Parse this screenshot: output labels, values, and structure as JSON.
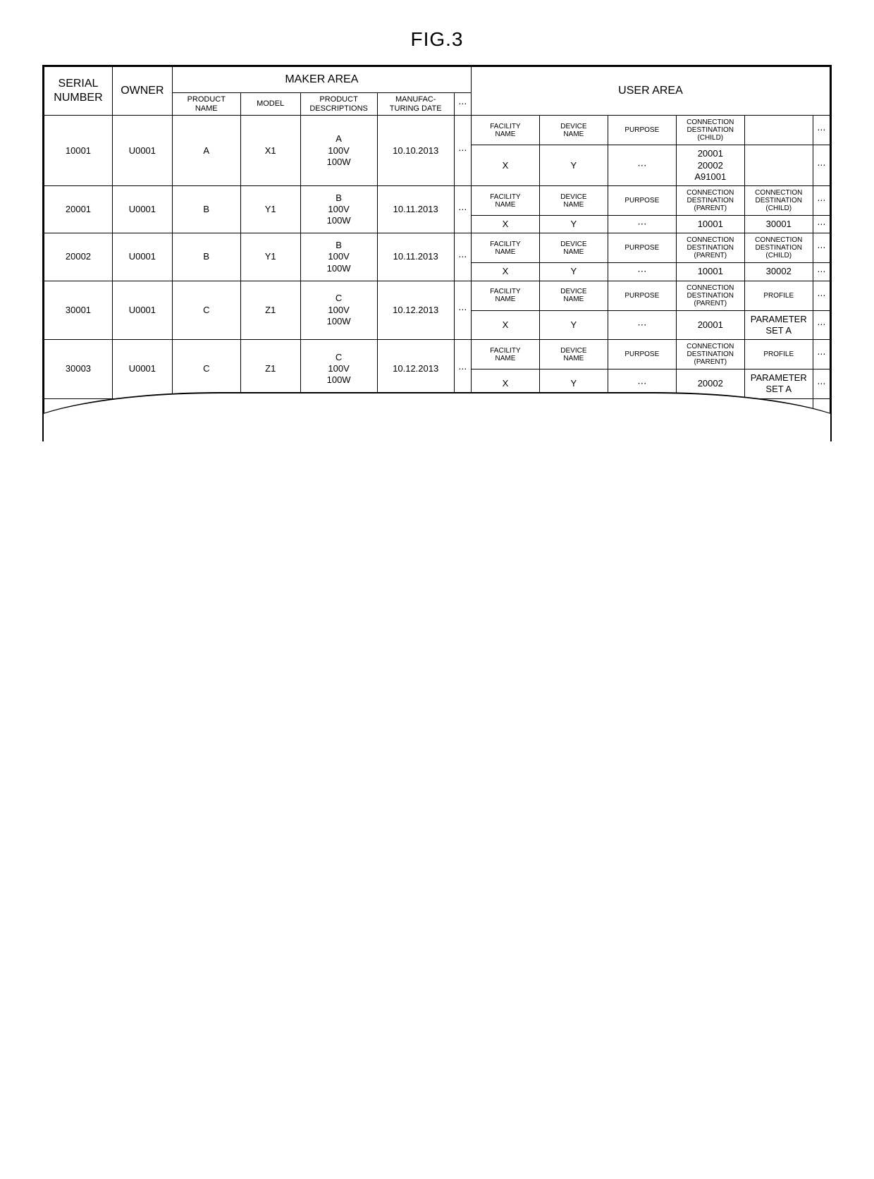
{
  "figure_title": "FIG.3",
  "area_headers": {
    "serial": "SERIAL\nNUMBER",
    "owner": "OWNER",
    "maker": "MAKER AREA",
    "user": "USER AREA"
  },
  "maker_cols": {
    "product_name": "PRODUCT\nNAME",
    "model": "MODEL",
    "product_desc": "PRODUCT\nDESCRIPTIONS",
    "manuf_date": "MANUFAC-\nTURING DATE",
    "more": "⋯"
  },
  "user_sub_labels": {
    "facility": "FACILITY\nNAME",
    "device": "DEVICE\nNAME",
    "purpose": "PURPOSE",
    "conn_child": "CONNECTION\nDESTINATION\n(CHILD)",
    "conn_parent": "CONNECTION\nDESTINATION\n(PARENT)",
    "profile": "PROFILE",
    "more": "⋯"
  },
  "vdots": "⋮",
  "rows": [
    {
      "serial": "10001",
      "owner": "U0001",
      "product_name": "A",
      "model": "X1",
      "product_desc": "A\n100V\n100W",
      "manuf_date": "10.10.2013",
      "user_h": [
        "FACILITY\nNAME",
        "DEVICE\nNAME",
        "PURPOSE",
        "CONNECTION\nDESTINATION\n(CHILD)",
        ""
      ],
      "user_v": [
        "X",
        "Y",
        "⋯",
        "20001\n20002\nA91001",
        ""
      ]
    },
    {
      "serial": "20001",
      "owner": "U0001",
      "product_name": "B",
      "model": "Y1",
      "product_desc": "B\n100V\n100W",
      "manuf_date": "10.11.2013",
      "user_h": [
        "FACILITY\nNAME",
        "DEVICE\nNAME",
        "PURPOSE",
        "CONNECTION\nDESTINATION\n(PARENT)",
        "CONNECTION\nDESTINATION\n(CHILD)"
      ],
      "user_v": [
        "X",
        "Y",
        "⋯",
        "10001",
        "30001"
      ]
    },
    {
      "serial": "20002",
      "owner": "U0001",
      "product_name": "B",
      "model": "Y1",
      "product_desc": "B\n100V\n100W",
      "manuf_date": "10.11.2013",
      "user_h": [
        "FACILITY\nNAME",
        "DEVICE\nNAME",
        "PURPOSE",
        "CONNECTION\nDESTINATION\n(PARENT)",
        "CONNECTION\nDESTINATION\n(CHILD)"
      ],
      "user_v": [
        "X",
        "Y",
        "⋯",
        "10001",
        "30002"
      ]
    },
    {
      "serial": "30001",
      "owner": "U0001",
      "product_name": "C",
      "model": "Z1",
      "product_desc": "C\n100V\n100W",
      "manuf_date": "10.12.2013",
      "user_h": [
        "FACILITY\nNAME",
        "DEVICE\nNAME",
        "PURPOSE",
        "CONNECTION\nDESTINATION\n(PARENT)",
        "PROFILE"
      ],
      "user_v": [
        "X",
        "Y",
        "⋯",
        "20001",
        "PARAMETER\nSET A"
      ]
    },
    {
      "serial": "30003",
      "owner": "U0001",
      "product_name": "C",
      "model": "Z1",
      "product_desc": "C\n100V\n100W",
      "manuf_date": "10.12.2013",
      "user_h": [
        "FACILITY\nNAME",
        "DEVICE\nNAME",
        "PURPOSE",
        "CONNECTION\nDESTINATION\n(PARENT)",
        "PROFILE"
      ],
      "user_v": [
        "X",
        "Y",
        "⋯",
        "20002",
        "PARAMETER\nSET A"
      ]
    }
  ],
  "col_widths": {
    "serial": "8%",
    "owner": "7%",
    "product_name": "8%",
    "model": "7%",
    "product_desc": "9%",
    "manuf_date": "9%",
    "maker_more": "2%",
    "user_col": "8%",
    "user_more": "2%"
  },
  "colors": {
    "border": "#000000",
    "background": "#ffffff",
    "text": "#000000"
  }
}
